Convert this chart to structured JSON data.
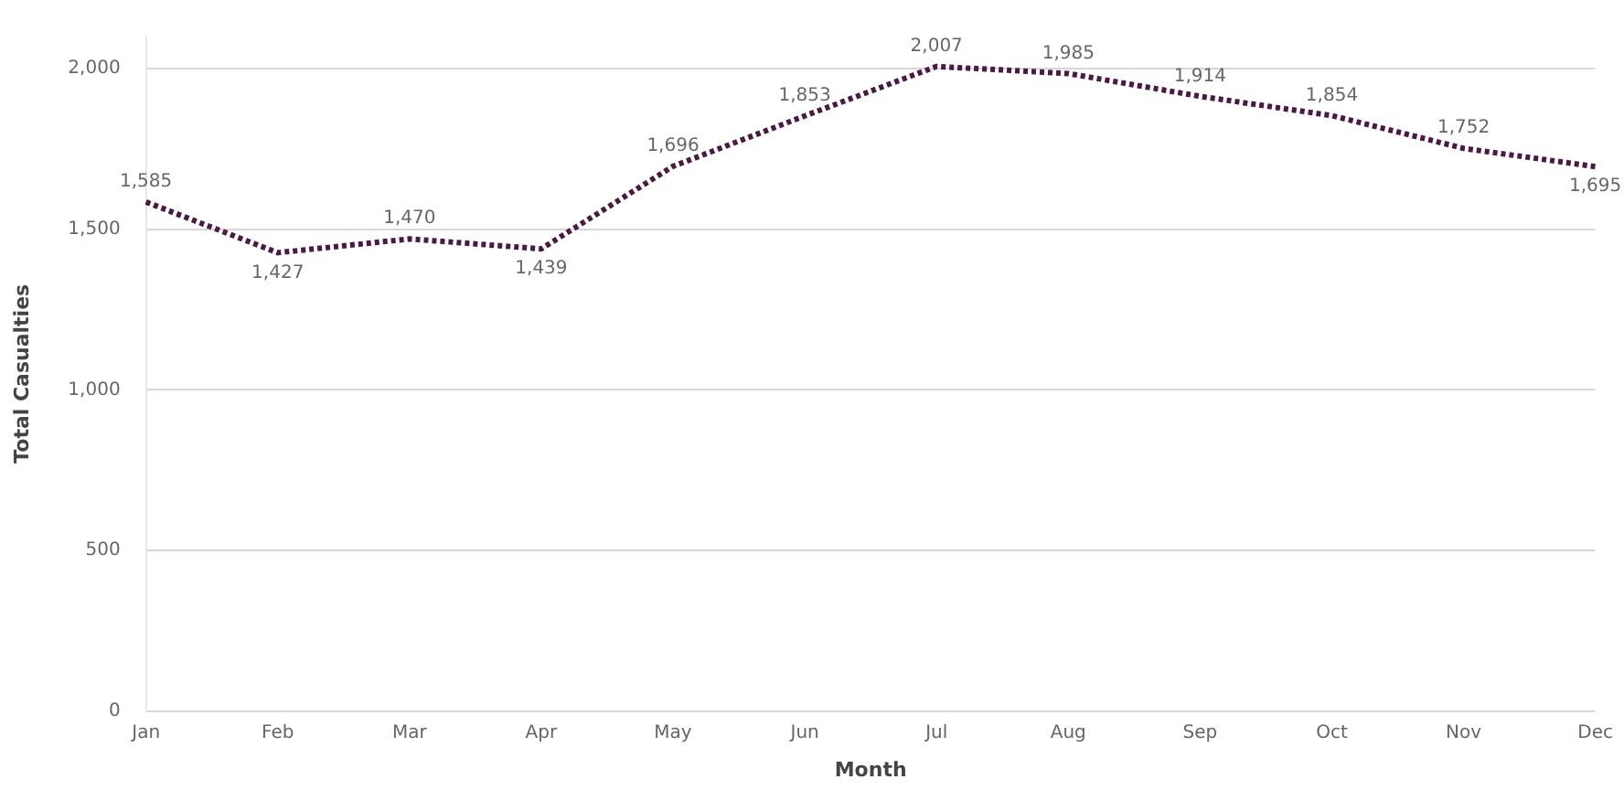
{
  "chart_data": {
    "type": "line",
    "xlabel": "Month",
    "ylabel": "Total Casualties",
    "categories": [
      "Jan",
      "Feb",
      "Mar",
      "Apr",
      "May",
      "Jun",
      "Jul",
      "Aug",
      "Sep",
      "Oct",
      "Nov",
      "Dec"
    ],
    "series": [
      {
        "color": "#4a1a45",
        "values": [
          1585,
          1427,
          1470,
          1439,
          1696,
          1853,
          2007,
          1985,
          1914,
          1854,
          1752,
          1695
        ],
        "value_labels": [
          "1,585",
          "1,427",
          "1,470",
          "1,439",
          "1,696",
          "1,853",
          "2,007",
          "1,985",
          "1,914",
          "1,854",
          "1,752",
          "1,695"
        ]
      }
    ],
    "ylim": [
      0,
      2100
    ],
    "yticks": [
      {
        "value": 0,
        "label": "0"
      },
      {
        "value": 500,
        "label": "500"
      },
      {
        "value": 1000,
        "label": "1,000"
      },
      {
        "value": 1500,
        "label": "1,500"
      },
      {
        "value": 2000,
        "label": "2,000"
      }
    ],
    "grid": "y",
    "legend": false,
    "marker": "none",
    "line_style": "dotted"
  }
}
